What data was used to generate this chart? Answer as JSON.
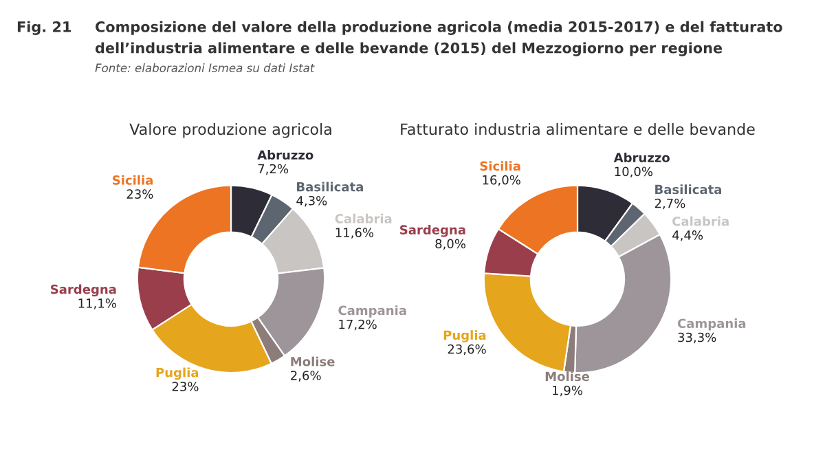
{
  "chart_data": [
    {
      "type": "donut",
      "title": "Valore produzione agricola",
      "annotations": [
        "Fig. 21",
        "Composizione del valore della produzione agricola (media 2015-2017) e del fatturato",
        "dell’industria alimentare e delle bevande (2015) del Mezzogiorno per regione",
        "Fonte: elaborazioni Ismea su dati Istat"
      ],
      "categories": [
        "Abruzzo",
        "Basilicata",
        "Calabria",
        "Campania",
        "Molise",
        "Puglia",
        "Sardegna",
        "Sicilia"
      ],
      "values": [
        7.2,
        4.3,
        11.6,
        17.2,
        2.6,
        23,
        11.1,
        23
      ],
      "value_labels": [
        "7,2%",
        "4,3%",
        "11,6%",
        "17,2%",
        "2,6%",
        "23%",
        "11,1%",
        "23%"
      ],
      "colors": [
        "#2e2c36",
        "#5d6670",
        "#c9c5c3",
        "#9d9599",
        "#8c7d7b",
        "#e5a51c",
        "#9a3e4b",
        "#ec7422"
      ]
    },
    {
      "type": "donut",
      "title": "Fatturato industria alimentare e delle bevande",
      "categories": [
        "Abruzzo",
        "Basilicata",
        "Calabria",
        "Campania",
        "Molise",
        "Puglia",
        "Sardegna",
        "Sicilia"
      ],
      "values": [
        10.0,
        2.7,
        4.4,
        33.3,
        1.9,
        23.6,
        8.0,
        16.0
      ],
      "value_labels": [
        "10,0%",
        "2,7%",
        "4,4%",
        "33,3%",
        "1,9%",
        "23,6%",
        "8,0%",
        "16,0%"
      ],
      "colors": [
        "#2e2c36",
        "#5d6670",
        "#c9c5c3",
        "#9d9599",
        "#8c7d7b",
        "#e5a51c",
        "#9a3e4b",
        "#ec7422"
      ]
    }
  ]
}
